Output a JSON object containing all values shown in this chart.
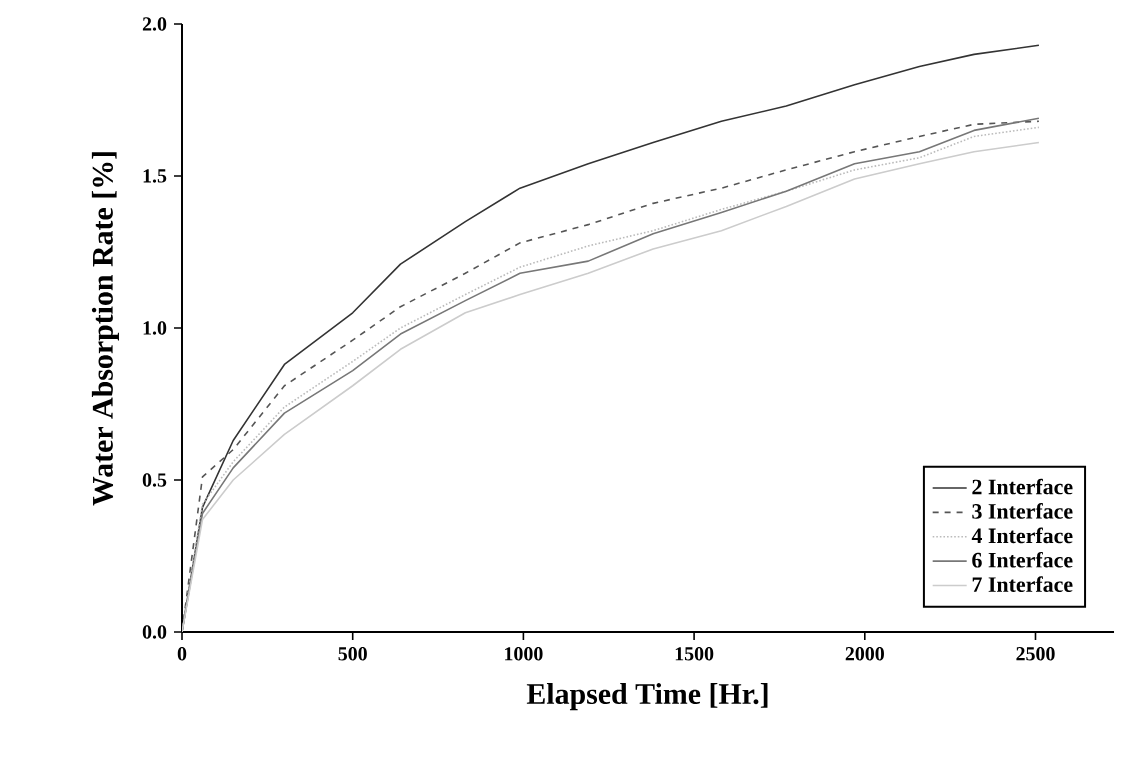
{
  "chart_data": {
    "type": "line",
    "xlabel": "Elapsed Time [Hr.]",
    "ylabel": "Water Absorption Rate [%]",
    "x": [
      0,
      60,
      150,
      300,
      500,
      640,
      830,
      990,
      1190,
      1380,
      1580,
      1770,
      1970,
      2160,
      2320,
      2510
    ],
    "xlim": [
      0,
      2730
    ],
    "ylim": [
      0,
      2.0
    ],
    "xticks": [
      0,
      500,
      1000,
      1500,
      2000,
      2500
    ],
    "yticks": [
      {
        "value": 0,
        "label": "0.0"
      },
      {
        "value": 0.5,
        "label": "0.5"
      },
      {
        "value": 1,
        "label": "1.0"
      },
      {
        "value": 1.5,
        "label": "1.5"
      },
      {
        "value": 2,
        "label": "2.0"
      }
    ],
    "legend": "bottom right",
    "grid": false,
    "series": [
      {
        "name": "2 Interface",
        "color": "#333333",
        "line_style": "solid",
        "values": [
          0,
          0.41,
          0.63,
          0.88,
          1.05,
          1.21,
          1.35,
          1.46,
          1.54,
          1.61,
          1.68,
          1.73,
          1.8,
          1.86,
          1.9,
          1.93
        ]
      },
      {
        "name": "3 Interface",
        "color": "#555555",
        "line_style": "dashed",
        "values": [
          0,
          0.51,
          0.6,
          0.81,
          0.96,
          1.07,
          1.18,
          1.28,
          1.34,
          1.41,
          1.46,
          1.52,
          1.58,
          1.63,
          1.67,
          1.68
        ]
      },
      {
        "name": "4 Interface",
        "color": "#bbbbbb",
        "line_style": "dotted",
        "values": [
          0,
          0.42,
          0.56,
          0.74,
          0.89,
          1.0,
          1.11,
          1.2,
          1.27,
          1.32,
          1.39,
          1.45,
          1.52,
          1.56,
          1.63,
          1.66
        ]
      },
      {
        "name": "6 Interface",
        "color": "#777777",
        "line_style": "solid",
        "values": [
          0,
          0.39,
          0.54,
          0.72,
          0.86,
          0.98,
          1.09,
          1.18,
          1.22,
          1.31,
          1.38,
          1.45,
          1.54,
          1.58,
          1.65,
          1.69
        ]
      },
      {
        "name": "7 Interface",
        "color": "#cccccc",
        "line_style": "solid",
        "values": [
          0,
          0.37,
          0.5,
          0.65,
          0.81,
          0.93,
          1.05,
          1.11,
          1.18,
          1.26,
          1.32,
          1.4,
          1.49,
          1.54,
          1.58,
          1.61
        ]
      }
    ]
  }
}
